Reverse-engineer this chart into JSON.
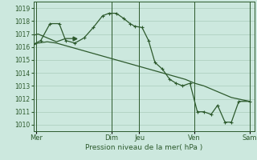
{
  "bg_color": "#cce8de",
  "grid_color": "#aaccbb",
  "line_color": "#2d5a2d",
  "marker_color": "#2d5a2d",
  "xlabel_text": "Pression niveau de la mer( hPa )",
  "ylim": [
    1009.5,
    1019.5
  ],
  "yticks": [
    1010,
    1011,
    1012,
    1013,
    1014,
    1015,
    1016,
    1017,
    1018,
    1019
  ],
  "xlim": [
    0,
    24
  ],
  "day_labels": [
    "Mer",
    "Dim",
    "Jeu",
    "Ven",
    "Sam"
  ],
  "day_positions": [
    0.3,
    8.5,
    11.5,
    17.5,
    23.5
  ],
  "vline_positions": [
    0.3,
    8.5,
    11.5,
    17.5,
    23.5
  ],
  "series1_x": [
    0,
    0.5,
    1.5,
    2.5,
    3.5,
    4.5,
    5.5,
    6.5,
    7.5,
    8.5,
    9.5,
    10.5,
    11.5,
    12.5,
    13.5,
    14.5,
    15.5,
    16.5,
    17.5,
    18.5,
    19.5,
    20.5,
    21.5,
    23.5
  ],
  "series1_y": [
    1016.2,
    1016.3,
    1016.4,
    1016.3,
    1016.1,
    1015.9,
    1015.7,
    1015.5,
    1015.3,
    1015.1,
    1014.9,
    1014.7,
    1014.5,
    1014.3,
    1014.1,
    1013.9,
    1013.7,
    1013.5,
    1013.2,
    1013.0,
    1012.7,
    1012.4,
    1012.1,
    1011.8
  ],
  "series2_x": [
    0,
    0.8,
    1.8,
    2.8,
    3.5,
    4.5,
    5.5,
    6.5,
    7.5,
    8.2,
    9.0,
    9.8,
    10.5,
    11.0,
    11.8,
    12.5,
    13.2,
    14.0,
    14.8,
    15.5,
    16.2,
    17.0,
    17.8,
    18.5,
    19.3,
    20.0,
    20.8,
    21.5,
    22.3,
    23.5
  ],
  "series2_y": [
    1016.2,
    1016.5,
    1017.8,
    1017.8,
    1016.5,
    1016.3,
    1016.7,
    1017.5,
    1018.4,
    1018.6,
    1018.6,
    1018.2,
    1017.8,
    1017.6,
    1017.5,
    1016.5,
    1014.8,
    1014.3,
    1013.5,
    1013.2,
    1013.0,
    1013.2,
    1011.0,
    1011.0,
    1010.8,
    1011.5,
    1010.2,
    1010.2,
    1011.8,
    1011.8
  ],
  "series3_x": [
    0,
    0.5,
    1.5,
    2.5,
    3.5,
    4.0,
    4.5,
    24
  ],
  "series3_y": [
    1016.9,
    1017.0,
    1016.7,
    1016.4,
    1016.65,
    1016.65,
    1016.65,
    1011.5
  ]
}
